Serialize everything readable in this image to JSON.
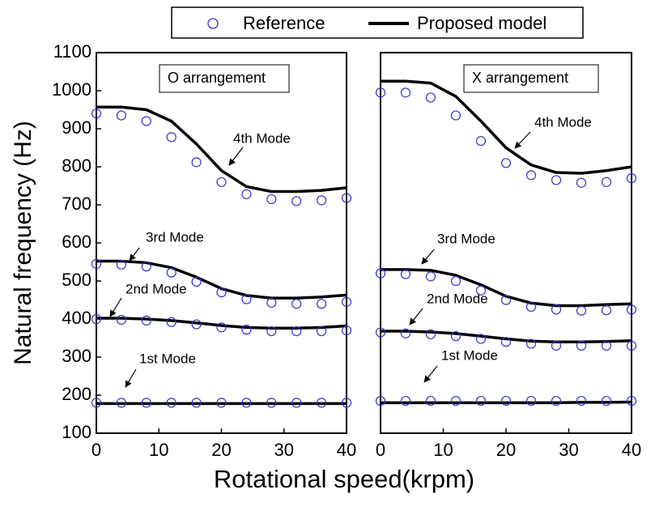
{
  "chart_data": [
    {
      "type": "line",
      "panel_label": "O arrangement",
      "x": [
        0,
        4,
        8,
        12,
        16,
        20,
        24,
        28,
        32,
        36,
        40
      ],
      "xlim": [
        0,
        40
      ],
      "xticks": [
        0,
        10,
        20,
        30,
        40
      ],
      "ylim": [
        100,
        1100
      ],
      "yticks": [
        100,
        200,
        300,
        400,
        500,
        600,
        700,
        800,
        900,
        1000,
        1100
      ],
      "series": [
        {
          "name": "1st Mode",
          "color": "#000000",
          "values": [
            178,
            178,
            178,
            178,
            178,
            178,
            178,
            178,
            178,
            178,
            178
          ],
          "reference": [
            180,
            180,
            180,
            180,
            180,
            180,
            180,
            180,
            180,
            180,
            180
          ]
        },
        {
          "name": "2nd Mode",
          "color": "#000000",
          "values": [
            402,
            402,
            400,
            396,
            390,
            383,
            378,
            376,
            376,
            378,
            382
          ],
          "reference": [
            400,
            398,
            396,
            392,
            386,
            378,
            372,
            368,
            368,
            368,
            370
          ]
        },
        {
          "name": "3rd Mode",
          "color": "#000000",
          "values": [
            552,
            552,
            548,
            535,
            510,
            480,
            462,
            455,
            455,
            458,
            463
          ],
          "reference": [
            545,
            543,
            538,
            522,
            498,
            470,
            452,
            443,
            440,
            440,
            445
          ]
        },
        {
          "name": "4th Mode",
          "color": "#000000",
          "values": [
            957,
            957,
            950,
            920,
            860,
            790,
            748,
            735,
            735,
            738,
            745
          ],
          "reference": [
            940,
            935,
            920,
            878,
            812,
            760,
            728,
            715,
            710,
            712,
            718
          ]
        }
      ]
    },
    {
      "type": "line",
      "panel_label": "X arrangement",
      "x": [
        0,
        4,
        8,
        12,
        16,
        20,
        24,
        28,
        32,
        36,
        40
      ],
      "xlim": [
        0,
        40
      ],
      "xticks": [
        0,
        10,
        20,
        30,
        40
      ],
      "ylim": [
        100,
        1100
      ],
      "series": [
        {
          "name": "1st Mode",
          "color": "#000000",
          "values": [
            180,
            180,
            180,
            180,
            180,
            180,
            180,
            180,
            181,
            181,
            182
          ],
          "reference": [
            185,
            185,
            185,
            185,
            185,
            185,
            185,
            185,
            185,
            185,
            185
          ]
        },
        {
          "name": "2nd Mode",
          "color": "#000000",
          "values": [
            368,
            368,
            366,
            362,
            355,
            348,
            342,
            340,
            340,
            341,
            343
          ],
          "reference": [
            365,
            362,
            360,
            355,
            348,
            340,
            335,
            330,
            330,
            330,
            330
          ]
        },
        {
          "name": "3rd Mode",
          "color": "#000000",
          "values": [
            530,
            530,
            528,
            515,
            490,
            460,
            442,
            435,
            435,
            438,
            440
          ],
          "reference": [
            520,
            518,
            512,
            500,
            475,
            450,
            432,
            425,
            422,
            423,
            425
          ]
        },
        {
          "name": "4th Mode",
          "color": "#000000",
          "values": [
            1025,
            1025,
            1020,
            985,
            920,
            850,
            805,
            785,
            783,
            790,
            800
          ],
          "reference": [
            995,
            995,
            982,
            935,
            868,
            810,
            778,
            765,
            758,
            760,
            770
          ]
        }
      ]
    }
  ],
  "ylabel": "Natural frequency (Hz)",
  "xlabel": "Rotational speed(krpm)",
  "legend": [
    {
      "name": "Reference",
      "color": "#3333cc"
    },
    {
      "name": "Proposed model",
      "color": "#000000"
    }
  ]
}
